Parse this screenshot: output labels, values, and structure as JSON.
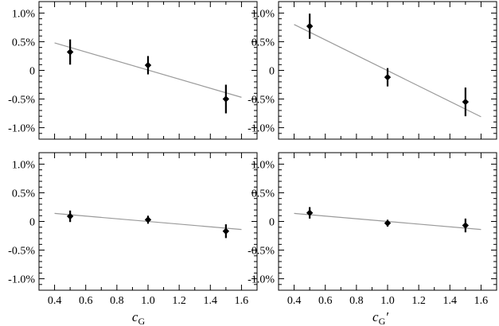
{
  "chart_data": [
    {
      "type": "scatter",
      "xlabel": "c_G",
      "ylim": [
        -1.2,
        1.2
      ],
      "xlim": [
        0.3,
        1.7
      ],
      "x_ticks": [
        "0.4",
        "0.6",
        "0.8",
        "1.0",
        "1.2",
        "1.4",
        "1.6"
      ],
      "y_ticks": [
        "1.0%",
        "0.5%",
        "0",
        "-0.5%",
        "-1.0%"
      ],
      "points": [
        {
          "x": 0.5,
          "y": 0.32,
          "err": 0.22
        },
        {
          "x": 1.0,
          "y": 0.09,
          "err": 0.16
        },
        {
          "x": 1.5,
          "y": -0.5,
          "err": 0.25
        }
      ],
      "fit_line": {
        "x": [
          0.4,
          1.6
        ],
        "y": [
          0.48,
          -0.47
        ]
      }
    },
    {
      "type": "scatter",
      "xlabel": "c_G′",
      "ylim": [
        -1.2,
        1.2
      ],
      "xlim": [
        0.3,
        1.7
      ],
      "x_ticks": [
        "0.4",
        "0.6",
        "0.8",
        "1.0",
        "1.2",
        "1.4",
        "1.6"
      ],
      "y_ticks": [
        "1.0%",
        "0.5%",
        "0",
        "-0.5%",
        "-1.0%"
      ],
      "points": [
        {
          "x": 0.5,
          "y": 0.77,
          "err": 0.22
        },
        {
          "x": 1.0,
          "y": -0.12,
          "err": 0.16
        },
        {
          "x": 1.5,
          "y": -0.55,
          "err": 0.25
        }
      ],
      "fit_line": {
        "x": [
          0.4,
          1.6
        ],
        "y": [
          0.8,
          -0.81
        ]
      }
    },
    {
      "type": "scatter",
      "xlabel": "c_G",
      "ylim": [
        -1.2,
        1.2
      ],
      "xlim": [
        0.3,
        1.7
      ],
      "x_ticks": [
        "0.4",
        "0.6",
        "0.8",
        "1.0",
        "1.2",
        "1.4",
        "1.6"
      ],
      "y_ticks": [
        "1.0%",
        "0.5%",
        "0",
        "-0.5%",
        "-1.0%"
      ],
      "points": [
        {
          "x": 0.5,
          "y": 0.09,
          "err": 0.1
        },
        {
          "x": 1.0,
          "y": 0.03,
          "err": 0.07
        },
        {
          "x": 1.5,
          "y": -0.17,
          "err": 0.12
        }
      ],
      "fit_line": {
        "x": [
          0.4,
          1.6
        ],
        "y": [
          0.14,
          -0.14
        ]
      }
    },
    {
      "type": "scatter",
      "xlabel": "c_G′",
      "ylim": [
        -1.2,
        1.2
      ],
      "xlim": [
        0.3,
        1.7
      ],
      "x_ticks": [
        "0.4",
        "0.6",
        "0.8",
        "1.0",
        "1.2",
        "1.4",
        "1.6"
      ],
      "y_ticks": [
        "1.0%",
        "0.5%",
        "0",
        "-0.5%",
        "-1.0%"
      ],
      "points": [
        {
          "x": 0.5,
          "y": 0.15,
          "err": 0.1
        },
        {
          "x": 1.0,
          "y": -0.03,
          "err": 0.06
        },
        {
          "x": 1.5,
          "y": -0.07,
          "err": 0.12
        }
      ],
      "fit_line": {
        "x": [
          0.4,
          1.6
        ],
        "y": [
          0.14,
          -0.14
        ]
      }
    }
  ],
  "axis_titles": {
    "left_main": "c",
    "left_sub": "G",
    "right_main": "c",
    "right_sub": "G",
    "right_prime": "′"
  }
}
